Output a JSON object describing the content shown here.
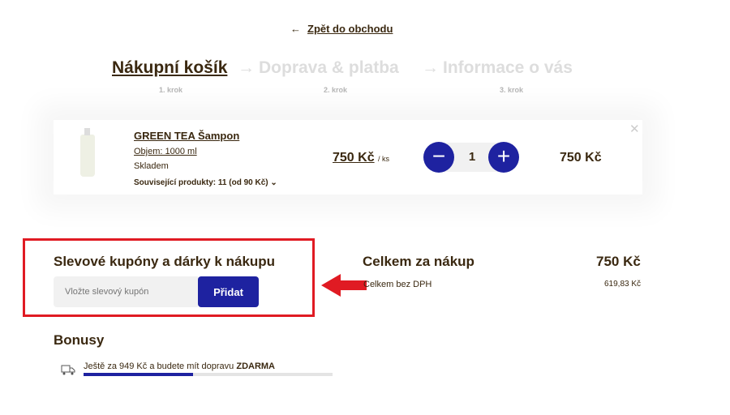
{
  "back": {
    "arrow": "←",
    "label": "Zpět do obchodu"
  },
  "steps": [
    {
      "label": "Nákupní košík",
      "sub": "1. krok"
    },
    {
      "label": "Doprava & platba",
      "sub": "2. krok"
    },
    {
      "label": "Informace o vás",
      "sub": "3. krok"
    }
  ],
  "step_sep": "→",
  "item": {
    "name": "GREEN TEA Šampon",
    "variant": "Objem: 1000 ml",
    "stock": "Skladem",
    "related": "Související produkty: 11 (od 90 Kč)",
    "unit_price": "750 Kč",
    "unit": "/ ks",
    "qty": "1",
    "total": "750 Kč",
    "minus": "−",
    "plus": "+",
    "remove": "✕"
  },
  "coupon": {
    "title": "Slevové kupóny a dárky k nákupu",
    "placeholder": "Vložte slevový kupón",
    "button": "Přidat"
  },
  "summary": {
    "label": "Celkem za nákup",
    "total": "750 Kč",
    "net_label": "Celkem bez DPH",
    "net": "619,83 Kč"
  },
  "bonus": {
    "title": "Bonusy",
    "prefix": "Ještě za 949 Kč a budete mít dopravu ",
    "bold": "ZDARMA",
    "progress_percent": 44
  },
  "colors": {
    "accent": "#1e22a0",
    "text": "#3a2810",
    "highlight": "#e01b23"
  }
}
